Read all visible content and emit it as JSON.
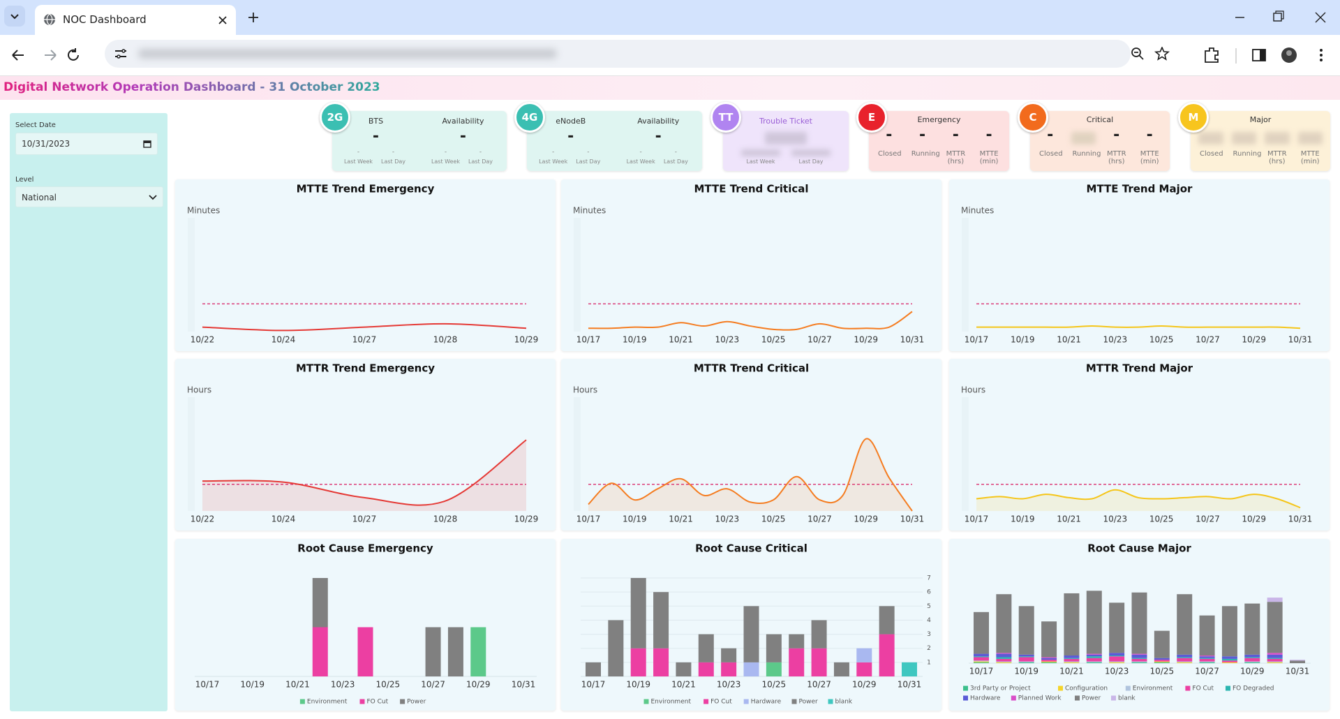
{
  "browser": {
    "tab_title": "NOC Dashboard"
  },
  "header": {
    "title": "Digital Network Operation Dashboard - 31 October 2023"
  },
  "sidebar": {
    "date_label": "Select Date",
    "date_value": "10/31/2023",
    "level_label": "Level",
    "level_value": "National"
  },
  "kpi_cards": [
    {
      "badge": "2G",
      "groups": [
        {
          "label": "BTS",
          "value": "-",
          "sub": [
            {
              "value": "-",
              "label": "Last Week"
            },
            {
              "value": "-",
              "label": "Last Day"
            }
          ]
        },
        {
          "label": "Availability",
          "value": "-",
          "sub": [
            {
              "value": "-",
              "label": "Last Week"
            },
            {
              "value": "-",
              "label": "Last Day"
            }
          ]
        }
      ]
    },
    {
      "badge": "4G",
      "groups": [
        {
          "label": "eNodeB",
          "value": "-",
          "sub": [
            {
              "value": "-",
              "label": "Last Week"
            },
            {
              "value": "-",
              "label": "Last Day"
            }
          ]
        },
        {
          "label": "Availability",
          "value": "-",
          "sub": [
            {
              "value": "-",
              "label": "Last Week"
            },
            {
              "value": "-",
              "label": "Last Day"
            }
          ]
        }
      ]
    },
    {
      "badge": "TT",
      "groups": [
        {
          "label": "Trouble Ticket",
          "sub": [
            {
              "label": "Last Week"
            },
            {
              "label": "Last Day"
            }
          ]
        }
      ]
    },
    {
      "badge": "E",
      "label": "Emergency",
      "metrics": [
        {
          "value": "-",
          "label": "Closed"
        },
        {
          "value": "-",
          "label": "Running"
        },
        {
          "value": "-",
          "label": "MTTR (hrs)"
        },
        {
          "value": "-",
          "label": "MTTE (min)"
        }
      ]
    },
    {
      "badge": "C",
      "label": "Critical",
      "metrics": [
        {
          "value": "-",
          "label": "Closed"
        },
        {
          "label": "Running"
        },
        {
          "value": "-",
          "label": "MTTR (hrs)"
        },
        {
          "value": "-",
          "label": "MTTE (min)"
        }
      ]
    },
    {
      "badge": "M",
      "label": "Major",
      "metrics": [
        {
          "label": "Closed"
        },
        {
          "label": "Running"
        },
        {
          "label": "MTTR (hrs)"
        },
        {
          "label": "MTTE (min)"
        }
      ]
    }
  ],
  "chart_data": [
    {
      "type": "line",
      "title": "MTTE Trend Emergency",
      "y_label": "Minutes",
      "color": "#e53935",
      "threshold_color": "#d81b60",
      "area": false,
      "categories": [
        "10/22",
        "10/24",
        "10/27",
        "10/28",
        "10/29"
      ],
      "values": [
        0.4,
        0.1,
        0.4,
        0.7,
        0.3
      ],
      "threshold": 2.5,
      "ylim": [
        0,
        10
      ]
    },
    {
      "type": "line",
      "title": "MTTE Trend Critical",
      "y_label": "Minutes",
      "color": "#f57c20",
      "threshold_color": "#d81b60",
      "area": false,
      "categories": [
        "10/17",
        null,
        "10/19",
        null,
        "10/21",
        null,
        "10/23",
        null,
        "10/25",
        null,
        "10/27",
        null,
        "10/29",
        null,
        "10/31"
      ],
      "values": [
        0.3,
        0.3,
        0.4,
        0.4,
        0.8,
        0.5,
        0.9,
        0.5,
        0.2,
        0.2,
        0.7,
        0.3,
        0.3,
        0.4,
        1.8
      ],
      "threshold": 2.5,
      "ylim": [
        0,
        10
      ]
    },
    {
      "type": "line",
      "title": "MTTE Trend Major",
      "y_label": "Minutes",
      "color": "#f5c518",
      "threshold_color": "#d81b60",
      "area": false,
      "categories": [
        "10/17",
        null,
        "10/19",
        null,
        "10/21",
        null,
        "10/23",
        null,
        "10/25",
        null,
        "10/27",
        null,
        "10/29",
        null,
        "10/31"
      ],
      "values": [
        0.4,
        0.4,
        0.4,
        0.4,
        0.4,
        0.5,
        0.4,
        0.4,
        0.5,
        0.4,
        0.4,
        0.4,
        0.4,
        0.4,
        0.3
      ],
      "threshold": 2.5,
      "ylim": [
        0,
        10
      ]
    },
    {
      "type": "line",
      "title": "MTTR Trend Emergency",
      "y_label": "Hours",
      "color": "#e53935",
      "threshold_color": "#d81b60",
      "area": true,
      "categories": [
        "10/22",
        "10/24",
        "10/27",
        "10/28",
        "10/29"
      ],
      "values": [
        2.7,
        2.6,
        1.2,
        0.9,
        6.4
      ],
      "threshold": 2.4,
      "ylim": [
        0,
        10
      ]
    },
    {
      "type": "line",
      "title": "MTTR Trend Critical",
      "y_label": "Hours",
      "color": "#f57c20",
      "threshold_color": "#d81b60",
      "area": true,
      "categories": [
        "10/17",
        null,
        "10/19",
        null,
        "10/21",
        null,
        "10/23",
        null,
        "10/25",
        null,
        "10/27",
        null,
        "10/29",
        null,
        "10/31"
      ],
      "values": [
        0.6,
        2.5,
        1.0,
        2.0,
        2.9,
        1.4,
        2.0,
        0.8,
        1.0,
        3.1,
        1.0,
        1.4,
        6.5,
        3.0,
        0.0
      ],
      "threshold": 2.4,
      "ylim": [
        0,
        10
      ]
    },
    {
      "type": "line",
      "title": "MTTR Trend Major",
      "y_label": "Hours",
      "color": "#f5c518",
      "threshold_color": "#d81b60",
      "area": true,
      "categories": [
        "10/17",
        null,
        "10/19",
        null,
        "10/21",
        null,
        "10/23",
        null,
        "10/25",
        null,
        "10/27",
        null,
        "10/29",
        null,
        "10/31"
      ],
      "values": [
        1.1,
        1.3,
        1.1,
        1.5,
        1.2,
        1.1,
        1.9,
        1.2,
        1.1,
        1.2,
        1.3,
        1.1,
        1.5,
        1.1,
        0.3
      ],
      "threshold": 2.4,
      "ylim": [
        0,
        10
      ]
    },
    {
      "type": "stacked_bar",
      "title": "Root Cause Emergency",
      "categories": [
        "10/17",
        null,
        "10/19",
        null,
        "10/21",
        null,
        "10/23",
        null,
        "10/25",
        null,
        "10/27",
        null,
        "10/29",
        null,
        "10/31"
      ],
      "series": [
        {
          "name": "Environment",
          "color": "#5cc98a",
          "values": [
            0,
            0,
            0,
            0,
            0,
            0,
            0,
            0,
            0,
            0,
            0,
            0,
            1,
            0,
            0
          ]
        },
        {
          "name": "FO Cut",
          "color": "#ec3fa2",
          "values": [
            0,
            0,
            0,
            0,
            0,
            1,
            0,
            1,
            0,
            0,
            0,
            0,
            0,
            0,
            0
          ]
        },
        {
          "name": "Power",
          "color": "#808080",
          "values": [
            0,
            0,
            0,
            0,
            0,
            1,
            0,
            0,
            0,
            0,
            1,
            1,
            0,
            0,
            0
          ]
        }
      ],
      "ylim": [
        0,
        2
      ]
    },
    {
      "type": "stacked_bar",
      "title": "Root Cause Critical",
      "categories": [
        "10/17",
        null,
        "10/19",
        null,
        "10/21",
        null,
        "10/23",
        null,
        "10/25",
        null,
        "10/27",
        null,
        "10/29",
        null,
        "10/31"
      ],
      "series": [
        {
          "name": "Environment",
          "color": "#5cc98a",
          "values": [
            0,
            0,
            0,
            0,
            0,
            0,
            0,
            0,
            1,
            0,
            0,
            0,
            0,
            0,
            0
          ]
        },
        {
          "name": "FO Cut",
          "color": "#ec3fa2",
          "values": [
            0,
            0,
            2,
            2,
            0,
            1,
            1,
            0,
            0,
            2,
            2,
            0,
            1,
            3,
            0
          ]
        },
        {
          "name": "Hardware",
          "color": "#a9b8f0",
          "values": [
            0,
            0,
            0,
            0,
            0,
            0,
            0,
            1,
            0,
            0,
            0,
            0,
            1,
            0,
            0
          ]
        },
        {
          "name": "Power",
          "color": "#808080",
          "values": [
            1,
            4,
            5,
            4,
            1,
            2,
            1,
            4,
            2,
            1,
            2,
            1,
            0,
            2,
            0
          ]
        },
        {
          "name": "blank",
          "color": "#3fc7c0",
          "values": [
            0,
            0,
            0,
            0,
            0,
            0,
            0,
            0,
            0,
            0,
            0,
            0,
            0,
            0,
            1
          ]
        }
      ],
      "ylim": [
        0,
        7
      ],
      "yticks": [
        1,
        2,
        3,
        4,
        5,
        6,
        7
      ],
      "grid": true
    },
    {
      "type": "stacked_bar",
      "title": "Root Cause Major",
      "categories": [
        "10/17",
        null,
        "10/19",
        null,
        "10/21",
        null,
        "10/23",
        null,
        "10/25",
        null,
        "10/27",
        null,
        "10/29",
        null,
        "10/31"
      ],
      "series": [
        {
          "name": "3rd Party or Project",
          "color": "#3cbf8c",
          "values": [
            1,
            0,
            1,
            1,
            0,
            1,
            0,
            1,
            1,
            0,
            1,
            0,
            1,
            0,
            0
          ]
        },
        {
          "name": "Configuration",
          "color": "#f5d42a",
          "values": [
            1,
            1,
            0,
            1,
            1,
            0,
            1,
            0,
            1,
            1,
            0,
            1,
            0,
            1,
            0
          ]
        },
        {
          "name": "Environment",
          "color": "#b0c4de",
          "values": [
            1,
            1,
            1,
            0,
            1,
            1,
            1,
            1,
            0,
            1,
            1,
            0,
            1,
            1,
            0
          ]
        },
        {
          "name": "FO Cut",
          "color": "#ec3fa2",
          "values": [
            4,
            3,
            5,
            2,
            3,
            4,
            6,
            3,
            2,
            4,
            3,
            2,
            4,
            3,
            0
          ]
        },
        {
          "name": "FO Degraded",
          "color": "#2bb5b0",
          "values": [
            1,
            2,
            1,
            0,
            1,
            2,
            1,
            1,
            0,
            1,
            1,
            2,
            1,
            1,
            0
          ]
        },
        {
          "name": "Hardware",
          "color": "#5b5bd6",
          "values": [
            3,
            4,
            2,
            2,
            3,
            2,
            3,
            4,
            2,
            3,
            2,
            3,
            3,
            4,
            0
          ]
        },
        {
          "name": "Planned Work",
          "color": "#d94dc8",
          "values": [
            0,
            1,
            0,
            1,
            0,
            1,
            0,
            1,
            0,
            0,
            1,
            0,
            0,
            2,
            0
          ]
        },
        {
          "name": "Power",
          "color": "#808080",
          "values": [
            49,
            69,
            57,
            42,
            73,
            74,
            59,
            72,
            32,
            71,
            47,
            59,
            60,
            60,
            3
          ]
        },
        {
          "name": "blank",
          "color": "#c9b6e8",
          "values": [
            0,
            0,
            0,
            0,
            0,
            0,
            0,
            0,
            0,
            0,
            0,
            0,
            0,
            5,
            1
          ]
        }
      ],
      "ylim": [
        0,
        100
      ]
    }
  ]
}
